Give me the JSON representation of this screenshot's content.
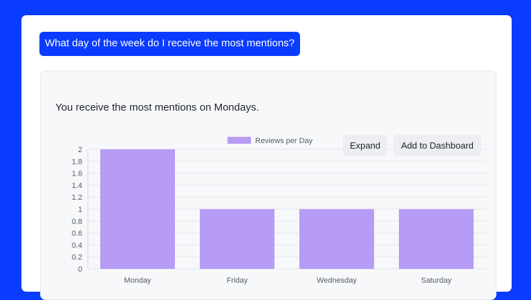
{
  "question": {
    "text": "What day of the week do I receive the most mentions?"
  },
  "answer": {
    "text": "You receive the most mentions on Mondays."
  },
  "actions": {
    "expand_label": "Expand",
    "add_label": "Add to Dashboard"
  },
  "colors": {
    "accent": "#0a3cff",
    "bar": "#b79cf6"
  },
  "chart_data": {
    "type": "bar",
    "categories": [
      "Monday",
      "Friday",
      "Wednesday",
      "Saturday"
    ],
    "series": [
      {
        "name": "Reviews per Day",
        "values": [
          2,
          1,
          1,
          1
        ]
      }
    ],
    "ylim": [
      0,
      2
    ],
    "yticks": [
      0,
      0.2,
      0.4,
      0.6,
      0.8,
      1.0,
      1.2,
      1.4,
      1.6,
      1.8,
      2.0
    ],
    "legend_position": "top",
    "grid": true
  }
}
